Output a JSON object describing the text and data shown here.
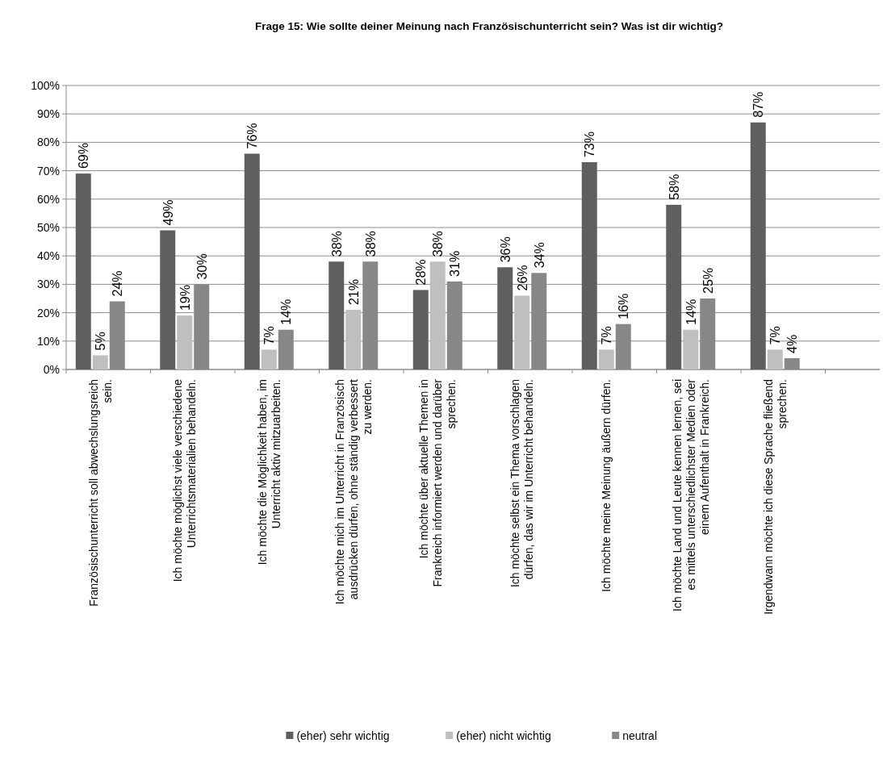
{
  "chart_data": {
    "type": "bar",
    "title": "Frage 15: Wie sollte deiner Meinung nach Französischunterricht sein? Was ist dir wichtig?",
    "categories": [
      "Französischunterricht soll abwechslungsreich sein.",
      "Ich möchte möglichst viele verschiedene Unterrichtsmaterialien behandeln.",
      "Ich möchte die Möglichkeit haben, im Unterricht aktiv mitzuarbeiten.",
      "Ich möchte mich im Unterricht in Französisch ausdrücken dürfen, ohne ständig verbessert zu werden.",
      "Ich möchte über aktuelle Themen in Frankreich informiert werden und darüber sprechen.",
      "Ich möchte selbst ein Thema vorschlagen dürfen, das wir im Unterricht behandeln.",
      "Ich möchte meine Meinung äußern dürfen.",
      "Ich möchte Land und Leute kennen lernen, sei es mittels unterschiedlichster Medien oder einem Aufenthalt in Frankreich.",
      "Irgendwann möchte ich diese Sprache fließend sprechen."
    ],
    "series": [
      {
        "name": "(eher) sehr wichtig",
        "color": "#5f5f5f",
        "values": [
          69,
          49,
          76,
          38,
          28,
          36,
          73,
          58,
          87
        ],
        "value_labels": [
          "69%",
          "49%",
          "76%",
          "38%",
          "28%",
          "36%",
          "73%",
          "58%",
          "87%"
        ]
      },
      {
        "name": "(eher) nicht wichtig",
        "color": "#bfbfbf",
        "values": [
          5,
          19,
          7,
          21,
          38,
          26,
          7,
          14,
          7
        ],
        "value_labels": [
          "5%",
          "19%",
          "7%",
          "21%",
          "38%",
          "26%",
          "7%",
          "14%",
          "7%"
        ]
      },
      {
        "name": "neutral",
        "color": "#878787",
        "values": [
          24,
          30,
          14,
          38,
          31,
          34,
          16,
          25,
          4
        ],
        "value_labels": [
          "24%",
          "30%",
          "14%",
          "38%",
          "31%",
          "34%",
          "16%",
          "25%",
          "4%"
        ]
      }
    ],
    "ylim": [
      0,
      100
    ],
    "yticks": [
      {
        "value": 0,
        "label": "0%"
      },
      {
        "value": 10,
        "label": "10%"
      },
      {
        "value": 20,
        "label": "20%"
      },
      {
        "value": 30,
        "label": "30%"
      },
      {
        "value": 40,
        "label": "40%"
      },
      {
        "value": 50,
        "label": "50%"
      },
      {
        "value": 60,
        "label": "60%"
      },
      {
        "value": 70,
        "label": "70%"
      },
      {
        "value": 80,
        "label": "80%"
      },
      {
        "value": 90,
        "label": "90%"
      },
      {
        "value": 100,
        "label": "100%"
      }
    ],
    "grid": "y",
    "legend": "bottom"
  }
}
